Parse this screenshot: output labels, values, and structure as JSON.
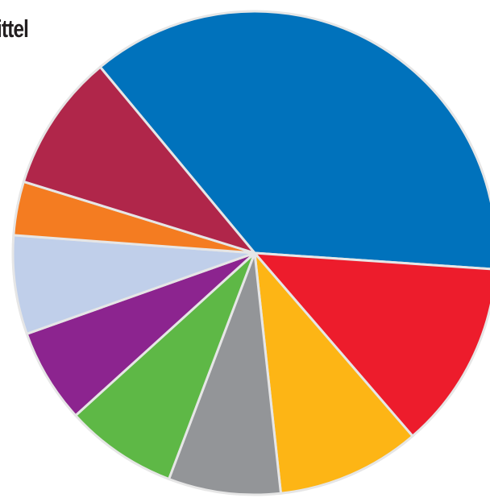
{
  "chart_data": {
    "type": "pie",
    "title": "ittel",
    "title_color": "#231f20",
    "series": [
      {
        "color": "#0072bc",
        "value": 37.1
      },
      {
        "color": "#ed1c2c",
        "value": 12.6
      },
      {
        "color": "#fdb515",
        "value": 9.6
      },
      {
        "color": "#939598",
        "value": 7.5
      },
      {
        "color": "#5eb846",
        "value": 7.5
      },
      {
        "color": "#8c248f",
        "value": 6.3
      },
      {
        "color": "#c0cfea",
        "value": 6.6
      },
      {
        "color": "#f47c21",
        "value": 3.6
      },
      {
        "color": "#b0264a",
        "value": 9.2
      }
    ],
    "start_angle_deg": -129.7,
    "direction": "clockwise",
    "separator_color": "#e6e6e6",
    "legend": "none"
  }
}
